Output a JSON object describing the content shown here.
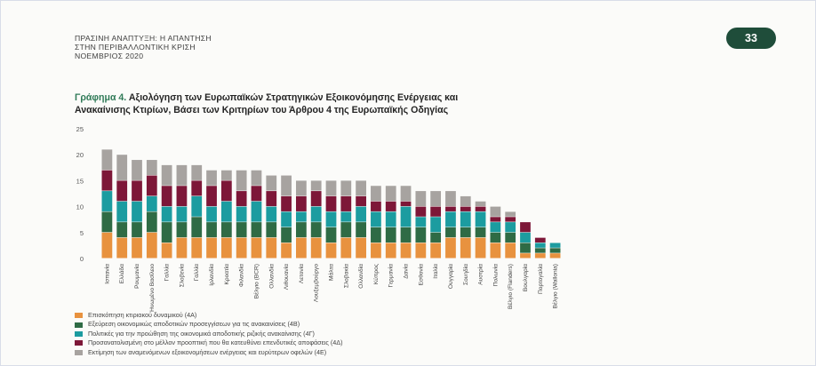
{
  "header": {
    "line1": "ΠΡΑΣΙΝΗ ΑΝΑΠΤΥΞΗ: Η ΑΠΑΝΤΗΣΗ",
    "line2": "ΣΤΗΝ ΠΕΡΙΒΑΛΛΟΝΤΙΚΗ ΚΡΙΣΗ",
    "line3": "ΝΟΕΜΒΡΙΟΣ 2020"
  },
  "page_number": "33",
  "chart_title": {
    "label": "Γράφημα 4.",
    "line1": "Αξιολόγηση των Ευρωπαϊκών Στρατηγικών Εξοικονόμησης Ενέργειας και",
    "line2": "Ανακαίνισης Κτιρίων, Βάσει των Κριτηρίων του Άρθρου 4 της Ευρωπαϊκής Οδηγίας"
  },
  "colors": {
    "s4A": "#e8923f",
    "s4B": "#2f6b45",
    "s4G": "#1c9ca0",
    "s4D": "#7d1738",
    "s4E": "#a7a3a0"
  },
  "chart_data": {
    "type": "bar",
    "stacked": true,
    "ylim": [
      0,
      25
    ],
    "yticks": [
      0,
      5,
      10,
      15,
      20,
      25
    ],
    "grid": false,
    "legend_position": "bottom",
    "categories": [
      "Ισπανία",
      "Ελλάδα",
      "Ρουμανία",
      "Ηνωμένο Βασίλειο",
      "Γαλλία",
      "Σλοβενία",
      "Γαλλία",
      "Ιρλανδία",
      "Κροατία",
      "Φιλανδία",
      "Βέλγιο (BCR)",
      "Ολλανδία",
      "Λιθουανία",
      "Λετονία",
      "Λουξεμβούργο",
      "Μάλτα",
      "Σλοβακία",
      "Ολλανδία",
      "Κύπρος",
      "Γερμανία",
      "Δανία",
      "Εσθονία",
      "Ιταλία",
      "Ουγγαρία",
      "Σουηδία",
      "Αυστρία",
      "Πολωνία",
      "Βέλγιο (Flanders)",
      "Βουλγαρία",
      "Πορτογαλία",
      "Βέλγιο (Wallonia)"
    ],
    "series": [
      {
        "name": "Επισκόπηση κτιριακού δυναμικού (4Α)",
        "values": [
          5,
          4,
          4,
          5,
          3,
          4,
          4,
          4,
          4,
          4,
          4,
          4,
          3,
          4,
          4,
          3,
          4,
          4,
          3,
          3,
          3,
          3,
          3,
          4,
          4,
          4,
          3,
          3,
          1,
          1,
          1
        ]
      },
      {
        "name": "Εξεύρεση οικονομικώς αποδοτικών προσεγγίσεων για τις ανακαινίσεις (4Β)",
        "values": [
          4,
          3,
          3,
          4,
          4,
          3,
          4,
          3,
          3,
          3,
          3,
          3,
          3,
          3,
          3,
          3,
          3,
          3,
          3,
          3,
          3,
          3,
          2,
          2,
          2,
          2,
          2,
          2,
          2,
          1,
          1
        ]
      },
      {
        "name": "Πολιτικές για την προώθηση της οικονομικά αποδοτικής ριζικής ανακαίνισης (4Γ)",
        "values": [
          4,
          4,
          4,
          3,
          3,
          3,
          4,
          3,
          4,
          3,
          4,
          3,
          3,
          2,
          3,
          3,
          2,
          3,
          3,
          3,
          4,
          2,
          3,
          3,
          3,
          3,
          2,
          2,
          2,
          1,
          1
        ]
      },
      {
        "name": "Προσανατολισμένη στο μέλλον προοπτική που θα κατευθύνει επενδυτικές αποφάσεις (4Δ)",
        "values": [
          4,
          4,
          4,
          4,
          4,
          4,
          3,
          4,
          4,
          3,
          3,
          3,
          3,
          3,
          3,
          3,
          3,
          2,
          2,
          2,
          1,
          2,
          2,
          1,
          1,
          1,
          1,
          1,
          2,
          1,
          0
        ]
      },
      {
        "name": "Εκτίμηση των αναμενόμενων εξοικονομήσεων ενέργειας και ευρύτερων οφελών (4Ε)",
        "values": [
          4,
          5,
          4,
          3,
          4,
          4,
          3,
          3,
          2,
          4,
          3,
          3,
          4,
          3,
          2,
          3,
          3,
          3,
          3,
          3,
          3,
          3,
          3,
          3,
          2,
          1,
          2,
          1,
          0,
          0,
          0
        ]
      }
    ]
  }
}
